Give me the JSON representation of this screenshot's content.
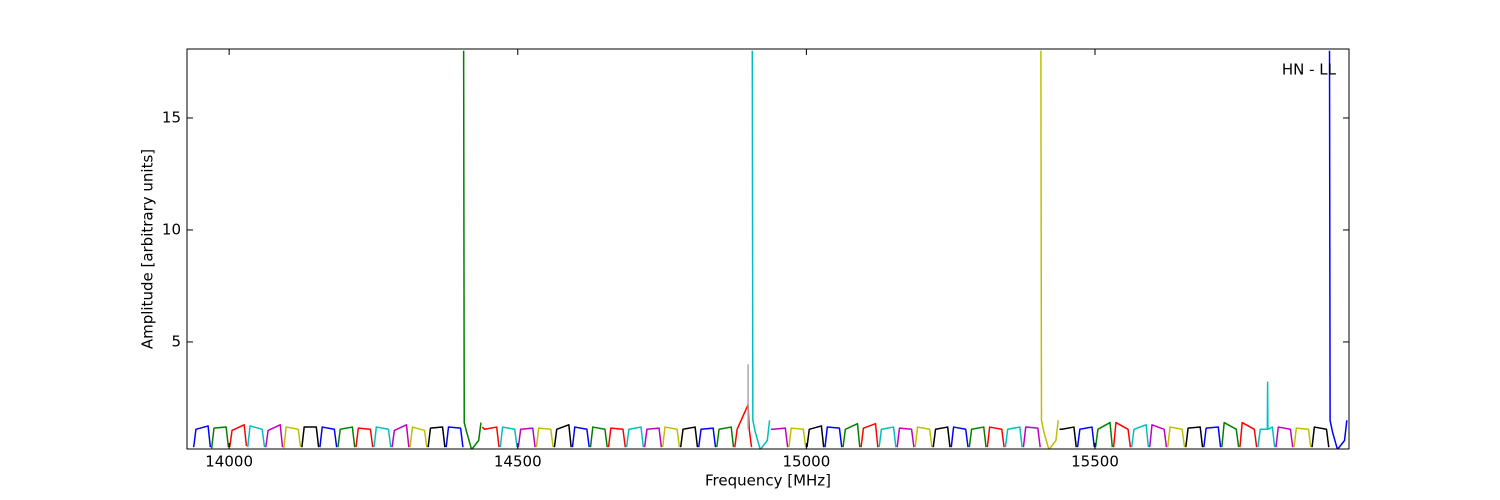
{
  "chart_data": {
    "type": "line",
    "xlabel": "Frequency [MHz]",
    "ylabel": "Amplitude [arbitrary units]",
    "annotation": "HN - LL",
    "xlim": [
      13927,
      15940
    ],
    "ylim": [
      0.22,
      18.08
    ],
    "xticks": [
      14000,
      14500,
      15000,
      15500
    ],
    "yticks": [
      5,
      10,
      15
    ],
    "series": [
      {
        "color": "#0000ff",
        "x": [
          13938.5,
          13942.5,
          13963.5,
          13967.5
        ],
        "values": [
          0.3,
          1.1,
          1.25,
          0.3
        ]
      },
      {
        "color": "#008000",
        "x": [
          13969.75,
          13973.75,
          13994.75,
          13998.75
        ],
        "values": [
          0.25,
          1.15,
          1.2,
          0.3
        ]
      },
      {
        "color": "#ff0000",
        "x": [
          14001,
          14005,
          14026,
          14030
        ],
        "values": [
          0.3,
          1.05,
          1.3,
          0.35
        ]
      },
      {
        "color": "#00bfbf",
        "x": [
          14032.25,
          14036.25,
          14057.25,
          14061.25
        ],
        "values": [
          0.3,
          1.25,
          1.1,
          0.3
        ]
      },
      {
        "color": "#bf00bf",
        "x": [
          14063.5,
          14067.5,
          14088.5,
          14092.5
        ],
        "values": [
          0.3,
          1.05,
          1.3,
          0.3
        ]
      },
      {
        "color": "#bfbf00",
        "x": [
          14094.75,
          14098.75,
          14119.75,
          14123.75
        ],
        "values": [
          0.25,
          1.2,
          1.1,
          0.3
        ]
      },
      {
        "color": "#000000",
        "x": [
          14126,
          14130,
          14151,
          14155
        ],
        "values": [
          0.3,
          1.2,
          1.2,
          0.3
        ]
      },
      {
        "color": "#0000ff",
        "x": [
          14157.25,
          14161.25,
          14182.25,
          14186.25
        ],
        "values": [
          0.3,
          1.2,
          1.1,
          0.3
        ]
      },
      {
        "color": "#008000",
        "x": [
          14188.5,
          14192.5,
          14213.5,
          14217.5
        ],
        "values": [
          0.3,
          1.1,
          1.2,
          0.3
        ]
      },
      {
        "color": "#ff0000",
        "x": [
          14219.75,
          14223.75,
          14244.75,
          14248.75
        ],
        "values": [
          0.3,
          1.15,
          1.1,
          0.3
        ]
      },
      {
        "color": "#00bfbf",
        "x": [
          14251,
          14255,
          14276,
          14280
        ],
        "values": [
          0.3,
          1.2,
          1.1,
          0.3
        ]
      },
      {
        "color": "#bf00bf",
        "x": [
          14282.25,
          14286.25,
          14307.25,
          14311.25
        ],
        "values": [
          0.3,
          1.05,
          1.3,
          0.3
        ]
      },
      {
        "color": "#bfbf00",
        "x": [
          14313.5,
          14317.5,
          14338.5,
          14342.5
        ],
        "values": [
          0.3,
          1.2,
          1.05,
          0.3
        ]
      },
      {
        "color": "#000000",
        "x": [
          14344.75,
          14348.75,
          14369.75,
          14373.75
        ],
        "values": [
          0.3,
          1.15,
          1.2,
          0.3
        ]
      },
      {
        "color": "#0000ff",
        "x": [
          14376,
          14380,
          14401,
          14405
        ],
        "values": [
          0.3,
          1.2,
          1.15,
          0.3
        ]
      },
      {
        "color": "#008000",
        "x": [
          14406.25,
          14407.25,
          14411.25,
          14420,
          14432.25,
          14436.25
        ],
        "values": [
          18,
          1.4,
          1.0,
          0.2,
          0.6,
          1.4
        ]
      },
      {
        "color": "#ff0000",
        "x": [
          14438.5,
          14442.5,
          14463.5,
          14467.5
        ],
        "values": [
          1.2,
          1.1,
          1.2,
          0.3
        ]
      },
      {
        "color": "#00bfbf",
        "x": [
          14469.75,
          14473.75,
          14494.75,
          14498.75
        ],
        "values": [
          0.3,
          1.2,
          1.1,
          0.3
        ]
      },
      {
        "color": "#bf00bf",
        "x": [
          14501,
          14505,
          14526,
          14530
        ],
        "values": [
          0.3,
          1.1,
          1.15,
          0.3
        ]
      },
      {
        "color": "#bfbf00",
        "x": [
          14532.25,
          14536.25,
          14557.25,
          14561.25
        ],
        "values": [
          0.3,
          1.15,
          1.1,
          0.3
        ]
      },
      {
        "color": "#000000",
        "x": [
          14563.5,
          14567.5,
          14588.5,
          14592.5
        ],
        "values": [
          0.3,
          1.1,
          1.3,
          0.3
        ]
      },
      {
        "color": "#0000ff",
        "x": [
          14594.75,
          14598.75,
          14619.75,
          14623.75
        ],
        "values": [
          0.3,
          1.2,
          1.1,
          0.3
        ]
      },
      {
        "color": "#008000",
        "x": [
          14626,
          14630,
          14651,
          14655
        ],
        "values": [
          0.3,
          1.2,
          1.1,
          0.3
        ]
      },
      {
        "color": "#ff0000",
        "x": [
          14657.25,
          14661.25,
          14682.25,
          14686.25
        ],
        "values": [
          0.3,
          1.15,
          1.1,
          0.3
        ]
      },
      {
        "color": "#00bfbf",
        "x": [
          14688.5,
          14692.5,
          14713.5,
          14717.5
        ],
        "values": [
          0.3,
          1.1,
          1.2,
          0.3
        ]
      },
      {
        "color": "#bf00bf",
        "x": [
          14719.75,
          14723.75,
          14744.75,
          14748.75
        ],
        "values": [
          0.3,
          1.1,
          1.15,
          0.3
        ]
      },
      {
        "color": "#bfbf00",
        "x": [
          14751,
          14755,
          14776,
          14780
        ],
        "values": [
          0.3,
          1.2,
          1.1,
          0.3
        ]
      },
      {
        "color": "#000000",
        "x": [
          14782.25,
          14786.25,
          14807.25,
          14811.25
        ],
        "values": [
          0.3,
          1.1,
          1.2,
          0.3
        ]
      },
      {
        "color": "#0000ff",
        "x": [
          14813.5,
          14817.5,
          14838.5,
          14842.5
        ],
        "values": [
          0.3,
          1.1,
          1.15,
          0.3
        ]
      },
      {
        "color": "#008000",
        "x": [
          14844.75,
          14848.75,
          14869.75,
          14873.75
        ],
        "values": [
          0.3,
          1.1,
          1.2,
          0.3
        ]
      },
      {
        "color": "#ff0000",
        "x": [
          14876,
          14880,
          14899,
          14901,
          14905
        ],
        "values": [
          0.3,
          1.1,
          2.2,
          1.1,
          0.3
        ]
      },
      {
        "color": "#00bfbf",
        "x": [
          14906.25,
          14907.25,
          14911.25,
          14920,
          14932.25,
          14936.25
        ],
        "values": [
          18,
          1.5,
          1.0,
          0.2,
          0.6,
          1.5
        ]
      },
      {
        "color": "#bf00bf",
        "x": [
          14938.5,
          14942.5,
          14963.5,
          14967.5
        ],
        "values": [
          1.1,
          1.1,
          1.15,
          0.3
        ]
      },
      {
        "color": "#bfbf00",
        "x": [
          14969.75,
          14973.75,
          14994.75,
          14998.75
        ],
        "values": [
          0.3,
          1.15,
          1.1,
          0.3
        ]
      },
      {
        "color": "#000000",
        "x": [
          15001,
          15005,
          15026,
          15030
        ],
        "values": [
          0.3,
          1.1,
          1.25,
          0.3
        ]
      },
      {
        "color": "#0000ff",
        "x": [
          15032.25,
          15036.25,
          15057.25,
          15061.25
        ],
        "values": [
          0.3,
          1.2,
          1.15,
          0.3
        ]
      },
      {
        "color": "#008000",
        "x": [
          15063.5,
          15067.5,
          15088.5,
          15092.5
        ],
        "values": [
          0.3,
          1.1,
          1.35,
          0.3
        ]
      },
      {
        "color": "#ff0000",
        "x": [
          15094.75,
          15098.75,
          15119.75,
          15123.75
        ],
        "values": [
          0.3,
          1.15,
          1.35,
          0.3
        ]
      },
      {
        "color": "#00bfbf",
        "x": [
          15126,
          15130,
          15151,
          15155
        ],
        "values": [
          0.3,
          1.1,
          1.2,
          0.3
        ]
      },
      {
        "color": "#bf00bf",
        "x": [
          15157.25,
          15161.25,
          15182.25,
          15186.25
        ],
        "values": [
          0.3,
          1.15,
          1.1,
          0.3
        ]
      },
      {
        "color": "#bfbf00",
        "x": [
          15188.5,
          15192.5,
          15213.5,
          15217.5
        ],
        "values": [
          0.3,
          1.2,
          1.1,
          0.3
        ]
      },
      {
        "color": "#000000",
        "x": [
          15219.75,
          15223.75,
          15244.75,
          15248.75
        ],
        "values": [
          0.3,
          1.1,
          1.2,
          0.3
        ]
      },
      {
        "color": "#0000ff",
        "x": [
          15251,
          15255,
          15276,
          15280
        ],
        "values": [
          0.3,
          1.2,
          1.1,
          0.3
        ]
      },
      {
        "color": "#008000",
        "x": [
          15282.25,
          15286.25,
          15307.25,
          15311.25
        ],
        "values": [
          0.3,
          1.1,
          1.2,
          0.3
        ]
      },
      {
        "color": "#ff0000",
        "x": [
          15313.5,
          15317.5,
          15338.5,
          15342.5
        ],
        "values": [
          0.3,
          1.2,
          1.1,
          0.3
        ]
      },
      {
        "color": "#00bfbf",
        "x": [
          15344.75,
          15348.75,
          15369.75,
          15373.75
        ],
        "values": [
          0.3,
          1.1,
          1.2,
          0.3
        ]
      },
      {
        "color": "#bf00bf",
        "x": [
          15376,
          15380,
          15401,
          15405
        ],
        "values": [
          0.3,
          1.2,
          1.15,
          0.3
        ]
      },
      {
        "color": "#bfbf00",
        "x": [
          15406.25,
          15407.25,
          15411.25,
          15420,
          15432.25,
          15436.25
        ],
        "values": [
          18,
          1.5,
          1.0,
          0.2,
          0.6,
          1.5
        ]
      },
      {
        "color": "#000000",
        "x": [
          15438.5,
          15442.5,
          15463.5,
          15467.5
        ],
        "values": [
          1.1,
          1.1,
          1.2,
          0.3
        ]
      },
      {
        "color": "#0000ff",
        "x": [
          15469.75,
          15473.75,
          15494.75,
          15498.75
        ],
        "values": [
          0.3,
          1.1,
          1.2,
          0.3
        ]
      },
      {
        "color": "#008000",
        "x": [
          15501,
          15505,
          15526,
          15530
        ],
        "values": [
          0.3,
          1.1,
          1.4,
          0.3
        ]
      },
      {
        "color": "#ff0000",
        "x": [
          15532.25,
          15536.25,
          15557.25,
          15561.25
        ],
        "values": [
          0.3,
          1.4,
          1.1,
          0.3
        ]
      },
      {
        "color": "#00bfbf",
        "x": [
          15563.5,
          15567.5,
          15588.5,
          15592.5
        ],
        "values": [
          0.3,
          1.1,
          1.3,
          0.3
        ]
      },
      {
        "color": "#bf00bf",
        "x": [
          15594.75,
          15598.75,
          15619.75,
          15623.75
        ],
        "values": [
          0.3,
          1.3,
          1.1,
          0.3
        ]
      },
      {
        "color": "#bfbf00",
        "x": [
          15626,
          15630,
          15651,
          15655
        ],
        "values": [
          0.3,
          1.2,
          1.1,
          0.3
        ]
      },
      {
        "color": "#000000",
        "x": [
          15657.25,
          15661.25,
          15682.25,
          15686.25
        ],
        "values": [
          0.3,
          1.15,
          1.2,
          0.3
        ]
      },
      {
        "color": "#0000ff",
        "x": [
          15688.5,
          15692.5,
          15713.5,
          15717.5
        ],
        "values": [
          0.3,
          1.15,
          1.2,
          0.3
        ]
      },
      {
        "color": "#008000",
        "x": [
          15719.75,
          15723.75,
          15744.75,
          15748.75
        ],
        "values": [
          0.3,
          1.4,
          1.1,
          0.3
        ]
      },
      {
        "color": "#ff0000",
        "x": [
          15751,
          15755,
          15776,
          15780
        ],
        "values": [
          0.3,
          1.4,
          1.1,
          0.3
        ]
      },
      {
        "color": "#00bfbf",
        "x": [
          15782.25,
          15786.25,
          15798.5,
          15799,
          15799.5,
          15807.25,
          15811.25
        ],
        "values": [
          0.3,
          1.1,
          1.1,
          3.2,
          1.1,
          1.2,
          0.3
        ]
      },
      {
        "color": "#bf00bf",
        "x": [
          15813.5,
          15817.5,
          15838.5,
          15842.5
        ],
        "values": [
          0.3,
          1.2,
          1.1,
          0.3
        ]
      },
      {
        "color": "#bfbf00",
        "x": [
          15844.75,
          15848.75,
          15869.75,
          15873.75
        ],
        "values": [
          0.3,
          1.15,
          1.1,
          0.3
        ]
      },
      {
        "color": "#000000",
        "x": [
          15876,
          15880,
          15901,
          15905
        ],
        "values": [
          0.3,
          1.2,
          1.1,
          0.3
        ]
      },
      {
        "color": "#0000ff",
        "x": [
          15906.25,
          15907.25,
          15911.25,
          15920,
          15932.25,
          15936.25
        ],
        "values": [
          18,
          1.5,
          1.0,
          0.2,
          0.6,
          1.5
        ]
      },
      {
        "color": "#aaaaaa",
        "x": [
          14899,
          14899
        ],
        "values": [
          1.1,
          4.0
        ]
      }
    ]
  }
}
